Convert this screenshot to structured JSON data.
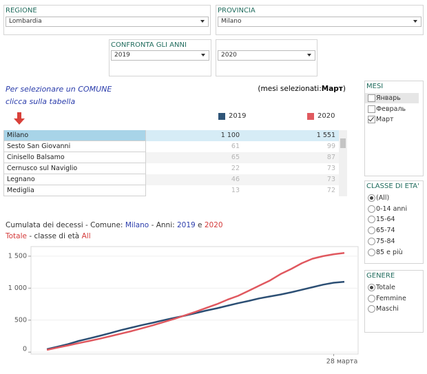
{
  "filters": {
    "regione": {
      "label": "REGIONE",
      "value": "Lombardia"
    },
    "provincia": {
      "label": "PROVINCIA",
      "value": "Milano"
    },
    "anni": {
      "label": "CONFRONTA GLI ANNI",
      "value1": "2019",
      "value2": "2020"
    }
  },
  "hint": [
    "Per selezionare un COMUNE",
    "clicca sulla tabella"
  ],
  "months_selected": {
    "prefix": "(mesi selezionati:",
    "value": "Март",
    "suffix": ")"
  },
  "table": {
    "legend": [
      "2019",
      "2020"
    ],
    "rows": [
      [
        "Milano",
        "1 100",
        "1 551"
      ],
      [
        "Sesto San Giovanni",
        "61",
        "99"
      ],
      [
        "Cinisello Balsamo",
        "65",
        "87"
      ],
      [
        "Cernusco sul Naviglio",
        "22",
        "73"
      ],
      [
        "Legnano",
        "46",
        "73"
      ],
      [
        "Mediglia",
        "13",
        "72"
      ]
    ]
  },
  "mesi": {
    "title": "MESI",
    "items": [
      "Январь",
      "Февраль",
      "Март"
    ],
    "checked": [
      2
    ]
  },
  "classe": {
    "title": "CLASSE DI ETA'",
    "items": [
      "(All)",
      "0-14 anni",
      "15-64",
      "65-74",
      "75-84",
      "85 e più"
    ],
    "selected": 0
  },
  "genere": {
    "title": "GENERE",
    "items": [
      "Totale",
      "Femmine",
      "Maschi"
    ],
    "selected": 0
  },
  "chart_data": {
    "type": "line",
    "title_parts": [
      "Cumulata dei decessi - Comune: ",
      "Milano",
      " - Anni: ",
      "2019",
      " e ",
      "2020"
    ],
    "subtitle_parts": [
      "Totale",
      " - classe di età ",
      "All"
    ],
    "x": [
      1,
      2,
      3,
      4,
      5,
      6,
      7,
      8,
      9,
      10,
      11,
      12,
      13,
      14,
      15,
      16,
      17,
      18,
      19,
      20,
      21,
      22,
      23,
      24,
      25,
      26,
      27,
      28,
      29
    ],
    "series": [
      {
        "name": "2019",
        "color": "#2c4f74",
        "values": [
          45,
          85,
          125,
          175,
          215,
          255,
          300,
          345,
          385,
          425,
          460,
          500,
          535,
          570,
          610,
          650,
          685,
          725,
          765,
          800,
          840,
          870,
          900,
          935,
          975,
          1015,
          1055,
          1085,
          1100
        ]
      },
      {
        "name": "2020",
        "color": "#e0585f",
        "values": [
          35,
          70,
          105,
          140,
          175,
          210,
          250,
          290,
          330,
          375,
          420,
          470,
          520,
          575,
          630,
          690,
          750,
          820,
          880,
          960,
          1040,
          1120,
          1220,
          1300,
          1390,
          1460,
          1500,
          1530,
          1551
        ]
      }
    ],
    "xlim": [
      -0.5,
      30.3
    ],
    "xticks": [
      {
        "value": 28,
        "label": "28 марта"
      }
    ],
    "ylim": [
      -30,
      1650
    ],
    "yticks": [
      0,
      500,
      {
        "value": 1000,
        "label": "1 000"
      },
      {
        "value": 1500,
        "label": "1 500"
      }
    ],
    "grid": true
  }
}
